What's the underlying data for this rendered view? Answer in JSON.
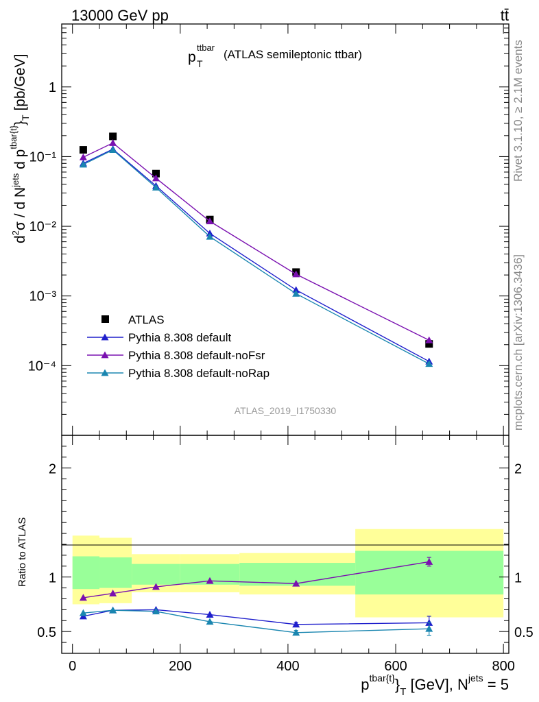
{
  "header": {
    "left_label": "13000 GeV pp",
    "right_label": "tt̄"
  },
  "side_labels": {
    "rivet": "Rivet 3.1.10, ≥ 2.1M events",
    "mcplots": "mcplots.cern.ch [arXiv:1306.3436]"
  },
  "plot_title": {
    "main": "p",
    "sup": "ttbar",
    "sub": "T",
    "rest": "(ATLAS semileptonic ttbar)"
  },
  "analysis_id": "ATLAS_2019_I1750330",
  "ratio_ylabel": "Ratio to ATLAS",
  "colors": {
    "data": "#000000",
    "default": "#1f1fcc",
    "noFsr": "#7a10b0",
    "noRap": "#1a86b0",
    "band_inner": "#99ff99",
    "band_outer": "#ffff99"
  },
  "chart_data": [
    {
      "type": "scatter",
      "panel": "main",
      "title": "p_T^ttbar (ATLAS semileptonic ttbar)",
      "ylabel": "d²σ / d N^jets d p^tbar{t}_T [pb/GeV]",
      "yscale": "log",
      "ylim": [
        1e-05,
        8
      ],
      "xlim": [
        -20,
        810
      ],
      "ytick_labels": [
        "1",
        "10⁻¹",
        "10⁻²",
        "10⁻³",
        "10⁻⁴"
      ],
      "legend_position": "lower-left",
      "x": [
        20,
        75,
        155,
        255,
        415,
        662
      ],
      "series": [
        {
          "name": "ATLAS",
          "kind": "data",
          "color_key": "data",
          "marker": "square",
          "values": [
            0.125,
            0.195,
            0.057,
            0.0125,
            0.0022,
            0.000205
          ]
        },
        {
          "name": "Pythia 8.308 default",
          "kind": "mc",
          "color_key": "default",
          "marker": "triangle",
          "values": [
            0.08,
            0.128,
            0.038,
            0.0079,
            0.00122,
            0.000115
          ]
        },
        {
          "name": "Pythia 8.308 default-noFsr",
          "kind": "mc",
          "color_key": "noFsr",
          "marker": "triangle",
          "values": [
            0.098,
            0.157,
            0.049,
            0.0118,
            0.00205,
            0.000232
          ]
        },
        {
          "name": "Pythia 8.308 default-noRap",
          "kind": "mc",
          "color_key": "noRap",
          "marker": "triangle",
          "values": [
            0.077,
            0.125,
            0.036,
            0.0071,
            0.00108,
            0.000106
          ]
        }
      ]
    },
    {
      "type": "line",
      "panel": "ratio",
      "ylabel": "Ratio to ATLAS",
      "xlabel": "p^tbar{t}_T [GeV], N^jets = 5",
      "ylim": [
        0.3,
        2.3
      ],
      "xlim": [
        -20,
        810
      ],
      "yticks": [
        0.5,
        1,
        2
      ],
      "ytick_labels": [
        "0.5",
        "1",
        "2"
      ],
      "xticks": [
        0,
        200,
        400,
        600,
        800
      ],
      "xtick_labels": [
        "0",
        "200",
        "400",
        "600",
        "800"
      ],
      "reference_line": 1,
      "x": [
        20,
        75,
        155,
        255,
        415,
        662
      ],
      "uncertainty_bands": {
        "bin_edges": [
          0,
          50,
          110,
          200,
          310,
          525,
          800
        ],
        "inner": [
          [
            0.89,
            1.19
          ],
          [
            0.9,
            1.18
          ],
          [
            0.93,
            1.12
          ],
          [
            0.93,
            1.12
          ],
          [
            0.92,
            1.13
          ],
          [
            0.84,
            1.24
          ]
        ],
        "outer": [
          [
            0.75,
            1.38
          ],
          [
            0.76,
            1.36
          ],
          [
            0.86,
            1.21
          ],
          [
            0.86,
            1.21
          ],
          [
            0.84,
            1.22
          ],
          [
            0.63,
            1.44
          ]
        ]
      },
      "series": [
        {
          "name": "Pythia 8.308 default",
          "color_key": "default",
          "values": [
            0.64,
            0.695,
            0.7,
            0.655,
            0.565,
            0.58
          ],
          "errors": [
            0.01,
            0.01,
            0.01,
            0.01,
            0.02,
            0.06
          ]
        },
        {
          "name": "Pythia 8.308 default-noFsr",
          "color_key": "noFsr",
          "values": [
            0.81,
            0.85,
            0.91,
            0.965,
            0.94,
            1.14
          ],
          "errors": [
            0.01,
            0.01,
            0.01,
            0.01,
            0.01,
            0.04
          ]
        },
        {
          "name": "Pythia 8.308 default-noRap",
          "color_key": "noRap",
          "values": [
            0.67,
            0.695,
            0.685,
            0.59,
            0.49,
            0.525
          ],
          "errors": [
            0.01,
            0.01,
            0.01,
            0.01,
            0.02,
            0.06
          ]
        }
      ]
    }
  ]
}
